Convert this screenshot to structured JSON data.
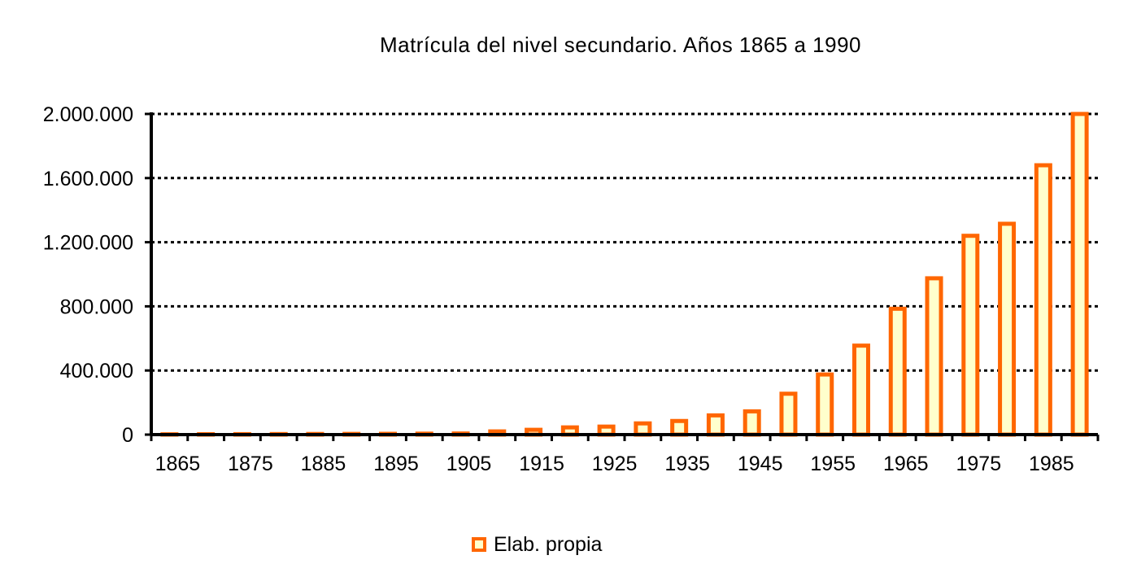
{
  "chart_data": {
    "type": "bar",
    "title": "Matrícula del nivel secundario. Años 1865 a 1990",
    "xlabel": "",
    "ylabel": "",
    "ylim": [
      0,
      2000000
    ],
    "y_ticks": [
      0,
      400000,
      800000,
      1200000,
      1600000,
      2000000
    ],
    "y_tick_labels": [
      "0",
      "400.000",
      "800.000",
      "1.200.000",
      "1.600.000",
      "2.000.000"
    ],
    "x_tick_labels": [
      "1865",
      "1875",
      "1885",
      "1895",
      "1905",
      "1915",
      "1925",
      "1935",
      "1945",
      "1955",
      "1965",
      "1975",
      "1985"
    ],
    "categories": [
      "1865",
      "1870",
      "1875",
      "1880",
      "1885",
      "1890",
      "1895",
      "1900",
      "1905",
      "1910",
      "1915",
      "1920",
      "1925",
      "1930",
      "1935",
      "1940",
      "1945",
      "1950",
      "1955",
      "1960",
      "1965",
      "1970",
      "1975",
      "1980",
      "1985",
      "1990"
    ],
    "series": [
      {
        "name": "Elab. propia",
        "values": [
          2000,
          2500,
          3000,
          3500,
          4000,
          4500,
          5000,
          6000,
          7000,
          20000,
          30000,
          45000,
          50000,
          70000,
          85000,
          120000,
          145000,
          255000,
          375000,
          555000,
          785000,
          975000,
          1240000,
          1315000,
          1680000,
          2000000
        ]
      }
    ],
    "grid": true,
    "legend_position": "bottom-center",
    "colors": {
      "bar_fill": "#ffffcc",
      "bar_stroke": "#ff6600",
      "grid": "#000000",
      "axis": "#000000"
    }
  }
}
